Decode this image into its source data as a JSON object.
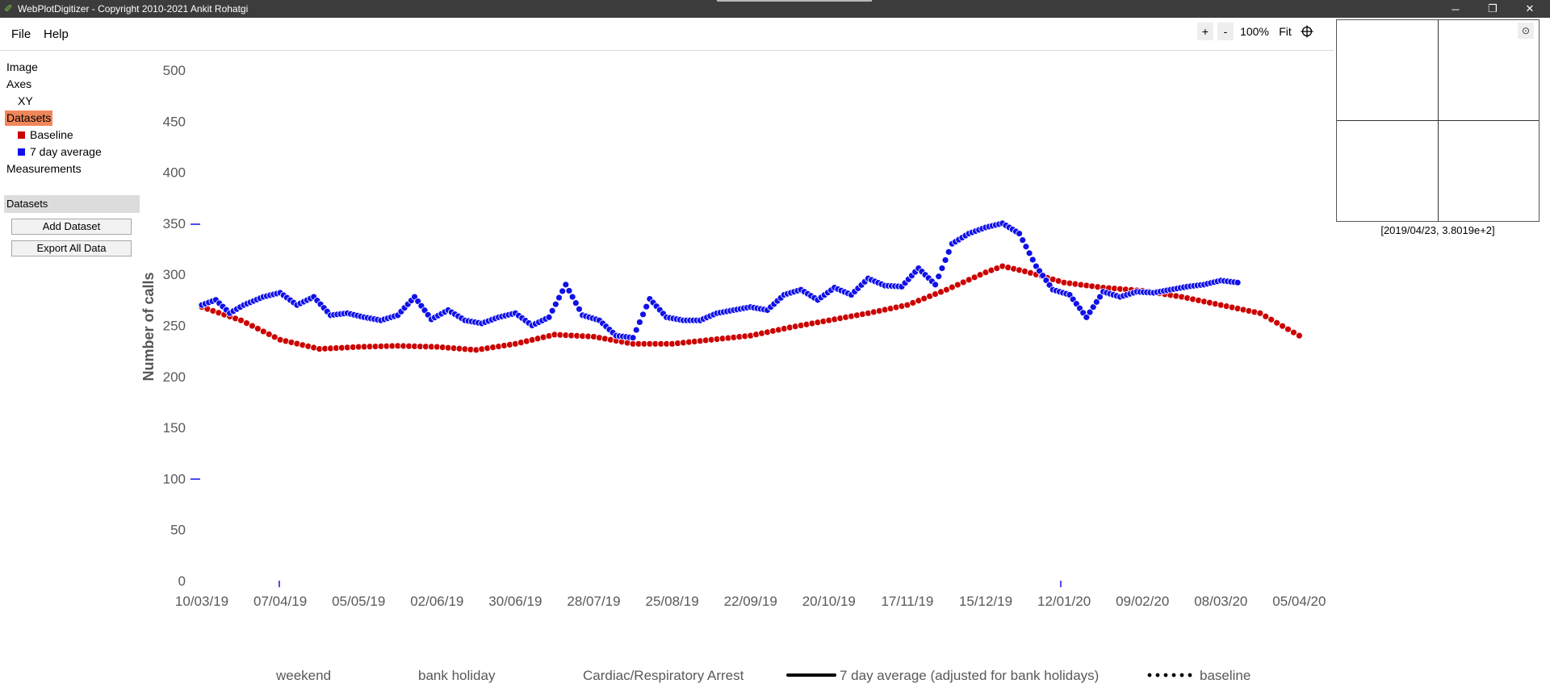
{
  "window": {
    "title": "WebPlotDigitizer - Copyright 2010-2021 Ankit Rohatgi",
    "minimize": "─",
    "restore": "❐",
    "close": "✕"
  },
  "menu": {
    "file": "File",
    "help": "Help"
  },
  "tree": {
    "image": "Image",
    "axes": "Axes",
    "xy": "XY",
    "datasets": "Datasets",
    "baseline": "Baseline",
    "seven_day": "7 day average",
    "measurements": "Measurements"
  },
  "panel": {
    "header": "Datasets",
    "add_dataset": "Add Dataset",
    "export_all": "Export All Data"
  },
  "zoom": {
    "plus": "+",
    "minus": "-",
    "level": "100%",
    "fit": "Fit"
  },
  "magnifier": {
    "readout": "[2019/04/23, 3.8019e+2]"
  },
  "colors": {
    "accent": "#f0875a",
    "baseline": "#cc0000",
    "average": "#1010e8"
  },
  "chart_data": {
    "type": "scatter",
    "title": "",
    "xlabel": "",
    "ylabel": "Number of calls",
    "ylim": [
      0,
      500
    ],
    "yticks": [
      "0",
      "50",
      "100",
      "150",
      "200",
      "250",
      "300",
      "350",
      "400",
      "450",
      "500"
    ],
    "xticks": [
      "10/03/19",
      "07/04/19",
      "05/05/19",
      "02/06/19",
      "30/06/19",
      "28/07/19",
      "25/08/19",
      "22/09/19",
      "20/10/19",
      "17/11/19",
      "15/12/19",
      "12/01/20",
      "09/02/20",
      "08/03/20",
      "05/04/20"
    ],
    "legend": [
      "weekend",
      "bank holiday",
      "Cardiac/Respiratory Arrest",
      "7 day average (adjusted for bank holidays)",
      "baseline"
    ],
    "series": [
      {
        "name": "Baseline",
        "color": "#cc0000",
        "x": [
          "2019-03-10",
          "2019-03-24",
          "2019-04-07",
          "2019-04-21",
          "2019-05-05",
          "2019-05-19",
          "2019-06-02",
          "2019-06-16",
          "2019-06-30",
          "2019-07-14",
          "2019-07-28",
          "2019-08-11",
          "2019-08-25",
          "2019-09-08",
          "2019-09-22",
          "2019-10-06",
          "2019-10-20",
          "2019-11-03",
          "2019-11-17",
          "2019-12-01",
          "2019-12-15",
          "2019-12-21",
          "2019-12-29",
          "2020-01-12",
          "2020-01-26",
          "2020-02-09",
          "2020-02-23",
          "2020-03-08",
          "2020-03-22",
          "2020-04-05"
        ],
        "y": [
          268,
          255,
          236,
          227,
          229,
          230,
          229,
          226,
          232,
          241,
          239,
          232,
          232,
          236,
          240,
          248,
          255,
          262,
          270,
          285,
          302,
          308,
          303,
          292,
          287,
          284,
          278,
          270,
          262,
          240
        ]
      },
      {
        "name": "7 day average",
        "color": "#1010e8",
        "x": [
          "2019-03-10",
          "2019-03-15",
          "2019-03-20",
          "2019-03-25",
          "2019-04-01",
          "2019-04-07",
          "2019-04-13",
          "2019-04-19",
          "2019-04-25",
          "2019-05-01",
          "2019-05-07",
          "2019-05-13",
          "2019-05-19",
          "2019-05-25",
          "2019-05-31",
          "2019-06-06",
          "2019-06-12",
          "2019-06-18",
          "2019-06-24",
          "2019-06-30",
          "2019-07-06",
          "2019-07-12",
          "2019-07-18",
          "2019-07-24",
          "2019-07-30",
          "2019-08-05",
          "2019-08-11",
          "2019-08-17",
          "2019-08-23",
          "2019-08-29",
          "2019-09-04",
          "2019-09-10",
          "2019-09-16",
          "2019-09-22",
          "2019-09-28",
          "2019-10-04",
          "2019-10-10",
          "2019-10-16",
          "2019-10-22",
          "2019-10-28",
          "2019-11-03",
          "2019-11-09",
          "2019-11-15",
          "2019-11-21",
          "2019-11-27",
          "2019-12-03",
          "2019-12-09",
          "2019-12-15",
          "2019-12-21",
          "2019-12-27",
          "2020-01-02",
          "2020-01-08",
          "2020-01-14",
          "2020-01-20",
          "2020-01-26",
          "2020-02-01",
          "2020-02-07",
          "2020-02-13",
          "2020-02-19",
          "2020-02-25",
          "2020-03-02",
          "2020-03-08",
          "2020-03-14"
        ],
        "y": [
          270,
          275,
          262,
          270,
          278,
          282,
          270,
          278,
          260,
          262,
          258,
          255,
          260,
          278,
          256,
          265,
          255,
          252,
          258,
          262,
          250,
          258,
          290,
          260,
          255,
          240,
          238,
          276,
          258,
          255,
          255,
          262,
          265,
          268,
          265,
          280,
          285,
          275,
          287,
          280,
          296,
          289,
          288,
          306,
          290,
          330,
          340,
          346,
          350,
          340,
          308,
          285,
          280,
          258,
          283,
          278,
          283,
          282,
          285,
          288,
          290,
          294,
          292
        ]
      }
    ]
  }
}
